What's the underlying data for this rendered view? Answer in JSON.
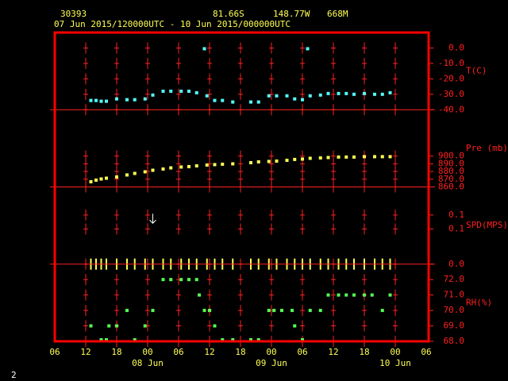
{
  "chart_data": {
    "type": "meteogram",
    "station": "30393",
    "lat": "81.66S",
    "lon": "148.77W",
    "elev": "668M",
    "period": "07 Jun 2015/120000UTC - 10 Jun 2015/000000UTC",
    "xlim": [
      "2015-06-07 06:00",
      "2015-06-10 06:00"
    ],
    "xticks": [
      {
        "value": "2015-06-07 06:00",
        "label": "06"
      },
      {
        "value": "2015-06-07 12:00",
        "label": "12"
      },
      {
        "value": "2015-06-07 18:00",
        "label": "18"
      },
      {
        "value": "2015-06-08 00:00",
        "label": "00"
      },
      {
        "value": "2015-06-08 06:00",
        "label": "06"
      },
      {
        "value": "2015-06-08 12:00",
        "label": "12"
      },
      {
        "value": "2015-06-08 18:00",
        "label": "18"
      },
      {
        "value": "2015-06-09 00:00",
        "label": "00"
      },
      {
        "value": "2015-06-09 06:00",
        "label": "06"
      },
      {
        "value": "2015-06-09 12:00",
        "label": "12"
      },
      {
        "value": "2015-06-09 18:00",
        "label": "18"
      },
      {
        "value": "2015-06-10 00:00",
        "label": "00"
      },
      {
        "value": "2015-06-10 06:00",
        "label": "06"
      }
    ],
    "xticks_days": [
      {
        "value": "2015-06-08 00:00",
        "label": "08 Jun"
      },
      {
        "value": "2015-06-09 00:00",
        "label": "09 Jun"
      },
      {
        "value": "2015-06-10 00:00",
        "label": "10 Jun"
      }
    ],
    "panels": [
      {
        "type": "scatter",
        "ylabel": "T(C)",
        "ylim": [
          -40,
          10
        ],
        "yticks": [
          {
            "value": 0,
            "label": "0.0"
          },
          {
            "value": -10,
            "label": "-10.0"
          },
          {
            "value": -20,
            "label": "-20.0"
          },
          {
            "value": -30,
            "label": "-30.0"
          },
          {
            "value": -40,
            "label": "-40.0"
          }
        ],
        "series": [
          {
            "color": "#54ffff",
            "marker": "square",
            "x": [
              "2015-06-07 13:00",
              "2015-06-07 14:00",
              "2015-06-07 15:00",
              "2015-06-07 16:00",
              "2015-06-07 18:00",
              "2015-06-07 20:00",
              "2015-06-07 21:30",
              "2015-06-07 23:30",
              "2015-06-08 01:00",
              "2015-06-08 03:00",
              "2015-06-08 04:30",
              "2015-06-08 06:30",
              "2015-06-08 08:00",
              "2015-06-08 09:30",
              "2015-06-08 11:00",
              "2015-06-08 11:30",
              "2015-06-08 13:00",
              "2015-06-08 14:30",
              "2015-06-08 16:30",
              "2015-06-08 20:00",
              "2015-06-08 21:30",
              "2015-06-08 23:30",
              "2015-06-09 01:00",
              "2015-06-09 03:00",
              "2015-06-09 04:30",
              "2015-06-09 06:00",
              "2015-06-09 07:00",
              "2015-06-09 07:30",
              "2015-06-09 09:30",
              "2015-06-09 11:00",
              "2015-06-09 13:00",
              "2015-06-09 14:30",
              "2015-06-09 16:00",
              "2015-06-09 18:00",
              "2015-06-09 20:00",
              "2015-06-09 21:30",
              "2015-06-09 23:00"
            ],
            "values": [
              -34,
              -34,
              -34.5,
              -34.5,
              -33,
              -33.5,
              -33.5,
              -33,
              -30.5,
              -28,
              -28,
              -28,
              -28,
              -29,
              -0.5,
              -31,
              -34,
              -34,
              -35,
              -35,
              -35,
              -31,
              -31,
              -31,
              -33,
              -33.5,
              -0.5,
              -31,
              -30.5,
              -29.5,
              -29.5,
              -29.5,
              -30,
              -29.5,
              -30,
              -30,
              -29
            ]
          }
        ]
      },
      {
        "type": "scatter",
        "ylabel": "Pre (mb)",
        "ylim": [
          860,
          960
        ],
        "yticks": [
          {
            "value": 900,
            "label": "900.0"
          },
          {
            "value": 890,
            "label": "890.0"
          },
          {
            "value": 880,
            "label": "880.0"
          },
          {
            "value": 870,
            "label": "870.0"
          },
          {
            "value": 860,
            "label": "860.0"
          }
        ],
        "series": [
          {
            "color": "#ffff54",
            "marker": "square",
            "x": [
              "2015-06-07 13:00",
              "2015-06-07 14:00",
              "2015-06-07 15:00",
              "2015-06-07 16:00",
              "2015-06-07 18:00",
              "2015-06-07 20:00",
              "2015-06-07 21:30",
              "2015-06-07 23:30",
              "2015-06-08 01:00",
              "2015-06-08 03:00",
              "2015-06-08 04:30",
              "2015-06-08 06:30",
              "2015-06-08 08:00",
              "2015-06-08 09:30",
              "2015-06-08 11:30",
              "2015-06-08 13:00",
              "2015-06-08 14:30",
              "2015-06-08 16:30",
              "2015-06-08 20:00",
              "2015-06-08 21:30",
              "2015-06-08 23:30",
              "2015-06-09 01:00",
              "2015-06-09 03:00",
              "2015-06-09 04:30",
              "2015-06-09 06:00",
              "2015-06-09 07:30",
              "2015-06-09 09:30",
              "2015-06-09 11:00",
              "2015-06-09 13:00",
              "2015-06-09 14:30",
              "2015-06-09 16:00",
              "2015-06-09 18:00",
              "2015-06-09 20:00",
              "2015-06-09 21:30",
              "2015-06-09 23:00"
            ],
            "values": [
              866.7,
              868.8,
              870.3,
              871.3,
              872.9,
              875.5,
              877.5,
              879.6,
              881.6,
              883.2,
              884.7,
              885.8,
              886.3,
              887.3,
              888.4,
              888.9,
              889.4,
              889.9,
              891.4,
              892.5,
              893,
              893.5,
              894.5,
              895.6,
              896.1,
              897.1,
              897.6,
              898.1,
              898.7,
              898.7,
              898.7,
              899.2,
              899.2,
              899.2,
              899.2
            ]
          }
        ]
      },
      {
        "type": "scatter",
        "ylabel": "SPD(MPS)",
        "ylim": [
          0,
          0.22
        ],
        "yticks": [
          {
            "value": 0.14,
            "label": "0.1"
          },
          {
            "value": 0.1,
            "label": "0.1"
          },
          {
            "value": 0,
            "label": "0.0"
          }
        ],
        "series": [
          {
            "color": "#ffff54",
            "marker": "bar",
            "x": [
              "2015-06-07 13:00",
              "2015-06-07 14:00",
              "2015-06-07 15:00",
              "2015-06-07 16:00",
              "2015-06-07 18:00",
              "2015-06-07 20:00",
              "2015-06-07 21:30",
              "2015-06-07 23:30",
              "2015-06-08 01:00",
              "2015-06-08 03:00",
              "2015-06-08 04:30",
              "2015-06-08 06:30",
              "2015-06-08 08:00",
              "2015-06-08 09:30",
              "2015-06-08 11:30",
              "2015-06-08 13:00",
              "2015-06-08 14:30",
              "2015-06-08 16:30",
              "2015-06-08 20:00",
              "2015-06-08 21:30",
              "2015-06-08 23:30",
              "2015-06-09 01:00",
              "2015-06-09 03:00",
              "2015-06-09 04:30",
              "2015-06-09 06:00",
              "2015-06-09 07:30",
              "2015-06-09 09:30",
              "2015-06-09 11:00",
              "2015-06-09 13:00",
              "2015-06-09 14:30",
              "2015-06-09 16:00",
              "2015-06-09 18:00",
              "2015-06-09 20:00",
              "2015-06-09 21:30",
              "2015-06-09 23:00"
            ],
            "values": [
              0,
              0,
              0,
              0,
              0,
              0,
              0,
              0,
              0,
              0,
              0,
              0,
              0,
              0,
              0,
              0,
              0,
              0,
              0,
              0,
              0,
              0,
              0,
              0,
              0,
              0,
              0,
              0,
              0,
              0,
              0,
              0,
              0,
              0,
              0
            ]
          },
          {
            "color": "#ffffff",
            "marker": "arrow",
            "x": [
              "2015-06-08 01:00"
            ],
            "values": [
              0.13
            ]
          }
        ]
      },
      {
        "type": "scatter",
        "ylabel": "RH(%)",
        "ylim": [
          68,
          73
        ],
        "yticks": [
          {
            "value": 72,
            "label": "72.0"
          },
          {
            "value": 71,
            "label": "71.0"
          },
          {
            "value": 70,
            "label": "70.0"
          },
          {
            "value": 69,
            "label": "69.0"
          },
          {
            "value": 68,
            "label": "68.0"
          }
        ],
        "series": [
          {
            "color": "#54ff54",
            "marker": "square",
            "x": [
              "2015-06-07 13:00",
              "2015-06-07 15:00",
              "2015-06-07 16:00",
              "2015-06-07 16:30",
              "2015-06-07 18:00",
              "2015-06-07 20:00",
              "2015-06-07 21:30",
              "2015-06-07 23:30",
              "2015-06-08 01:00",
              "2015-06-08 03:00",
              "2015-06-08 04:30",
              "2015-06-08 06:30",
              "2015-06-08 08:00",
              "2015-06-08 09:30",
              "2015-06-08 10:00",
              "2015-06-08 11:00",
              "2015-06-08 12:00",
              "2015-06-08 13:00",
              "2015-06-08 14:30",
              "2015-06-08 16:30",
              "2015-06-08 20:00",
              "2015-06-08 21:30",
              "2015-06-08 23:30",
              "2015-06-09 00:30",
              "2015-06-09 02:00",
              "2015-06-09 04:00",
              "2015-06-09 04:30",
              "2015-06-09 06:00",
              "2015-06-09 07:30",
              "2015-06-09 09:30",
              "2015-06-09 11:00",
              "2015-06-09 13:00",
              "2015-06-09 14:30",
              "2015-06-09 16:00",
              "2015-06-09 18:00",
              "2015-06-09 19:30",
              "2015-06-09 21:30",
              "2015-06-09 23:00"
            ],
            "values": [
              69,
              68.1,
              68.1,
              69,
              69,
              70,
              68.1,
              69,
              70,
              72,
              72,
              72,
              72,
              72,
              71,
              70,
              70,
              69,
              68.1,
              68.1,
              68.1,
              68.1,
              70,
              70,
              70,
              70,
              69,
              68.1,
              70,
              70,
              71,
              71,
              71,
              71,
              71,
              71,
              70,
              71
            ]
          }
        ]
      }
    ]
  },
  "page_number": "2"
}
